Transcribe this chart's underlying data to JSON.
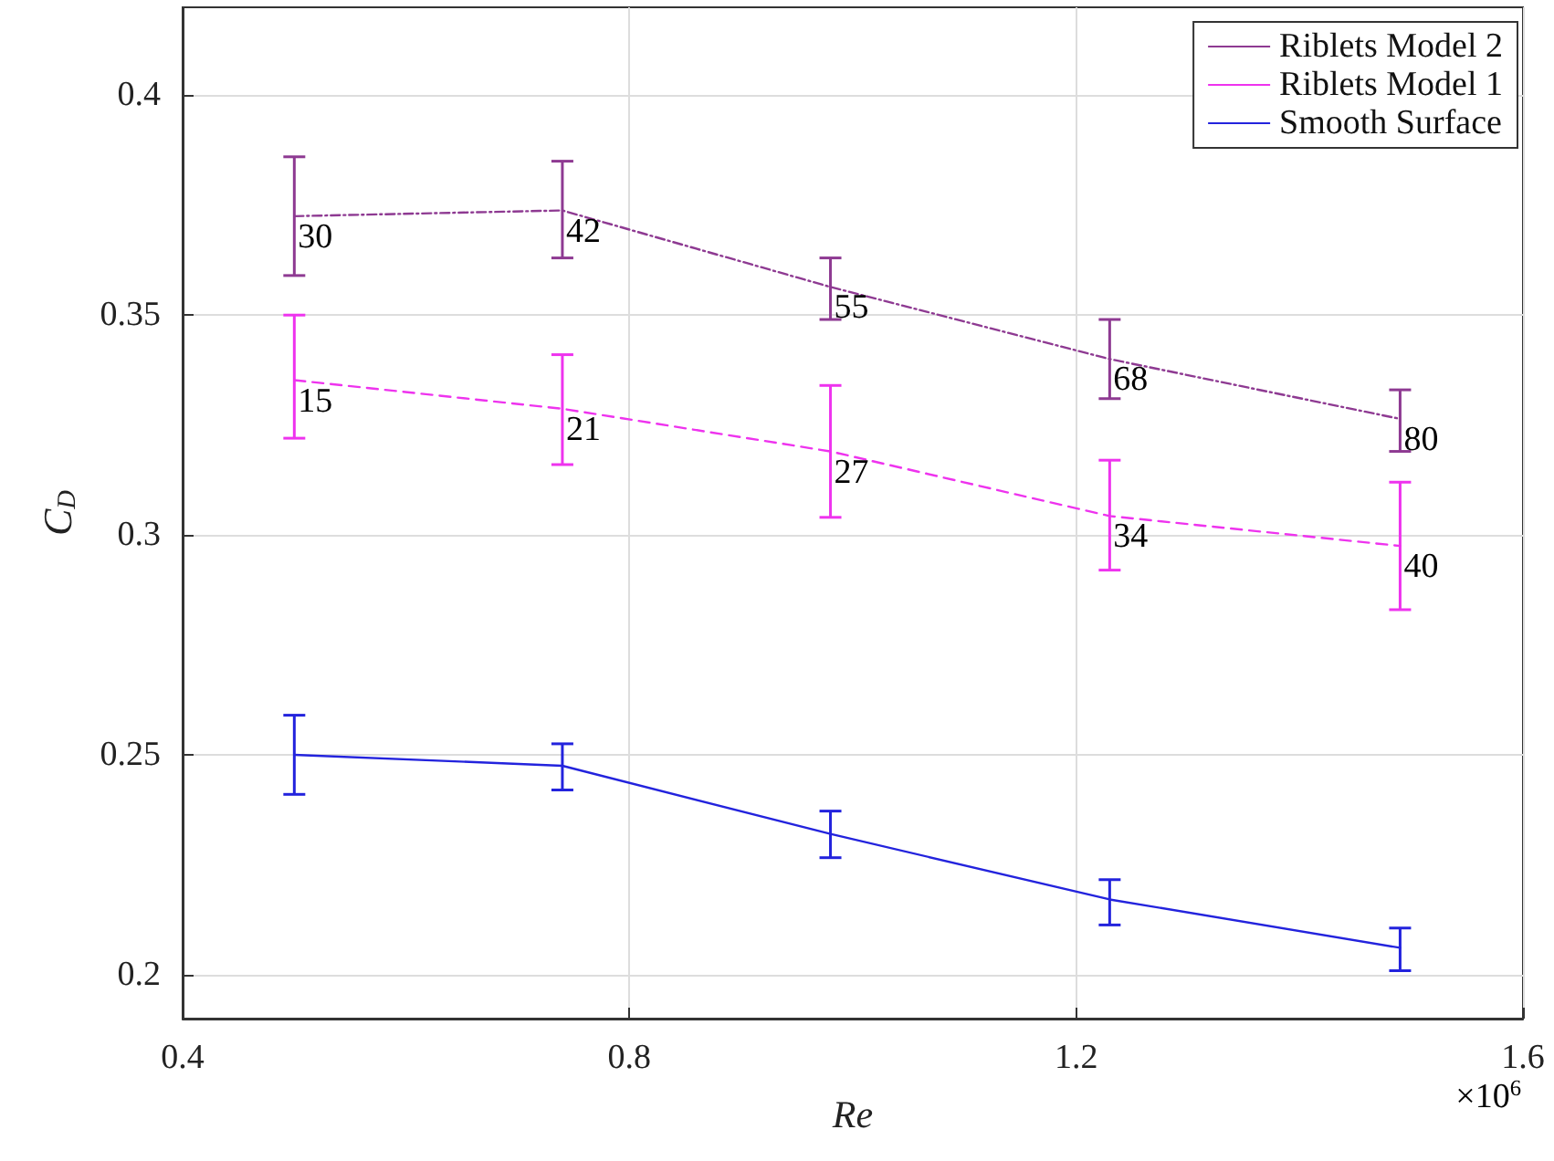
{
  "chart_data": {
    "type": "line",
    "xlabel": "Re",
    "ylabel": "C$_{D}$",
    "x": [
      0.5,
      0.74,
      0.98,
      1.23,
      1.49
    ],
    "series": [
      {
        "name": "Riblets Model 2",
        "color": "#8e3a92",
        "line_style": "dotted",
        "values": [
          0.3725,
          0.3738,
          0.3564,
          0.34,
          0.3264
        ],
        "errors": [
          [
            0.359,
            0.386
          ],
          [
            0.363,
            0.385
          ],
          [
            0.349,
            0.363
          ],
          [
            0.331,
            0.349
          ],
          [
            0.319,
            0.333
          ]
        ]
      },
      {
        "name": "Riblets Model 1",
        "color": "#ee33ee",
        "line_style": "dashed",
        "values": [
          0.3352,
          0.3287,
          0.319,
          0.3043,
          0.2975
        ],
        "errors": [
          [
            0.322,
            0.35
          ],
          [
            0.316,
            0.341
          ],
          [
            0.304,
            0.334
          ],
          [
            0.292,
            0.317
          ],
          [
            0.283,
            0.312
          ]
        ]
      },
      {
        "name": "Smooth Surface",
        "color": "#2323dd",
        "line_style": "solid",
        "values": [
          0.25,
          0.2475,
          0.232,
          0.2171,
          0.2061
        ],
        "errors": [
          [
            0.241,
            0.259
          ],
          [
            0.242,
            0.2525
          ],
          [
            0.2266,
            0.2372
          ],
          [
            0.2113,
            0.2216
          ],
          [
            0.2009,
            0.2106
          ]
        ]
      }
    ],
    "xlim": [
      0.4,
      1.6
    ],
    "xticks": [
      0.4,
      0.8,
      1.2,
      1.6
    ],
    "ylim": [
      0.19,
      0.42
    ],
    "yticks": [
      0.2,
      0.25,
      0.3,
      0.35,
      0.4
    ],
    "annotations": [
      "×10$^{6}$",
      {
        "text": "30",
        "x": 0.5,
        "y": 0.3725
      },
      {
        "text": "42",
        "x": 0.74,
        "y": 0.3738
      },
      {
        "text": "55",
        "x": 0.98,
        "y": 0.3564
      },
      {
        "text": "68",
        "x": 1.23,
        "y": 0.34
      },
      {
        "text": "80",
        "x": 1.49,
        "y": 0.3264
      },
      {
        "text": "15",
        "x": 0.5,
        "y": 0.3352
      },
      {
        "text": "21",
        "x": 0.74,
        "y": 0.3287
      },
      {
        "text": "27",
        "x": 0.98,
        "y": 0.319
      },
      {
        "text": "34",
        "x": 1.23,
        "y": 0.3043
      },
      {
        "text": "40",
        "x": 1.49,
        "y": 0.2975
      }
    ],
    "grid": true,
    "legend": "top right",
    "marker": "none"
  }
}
